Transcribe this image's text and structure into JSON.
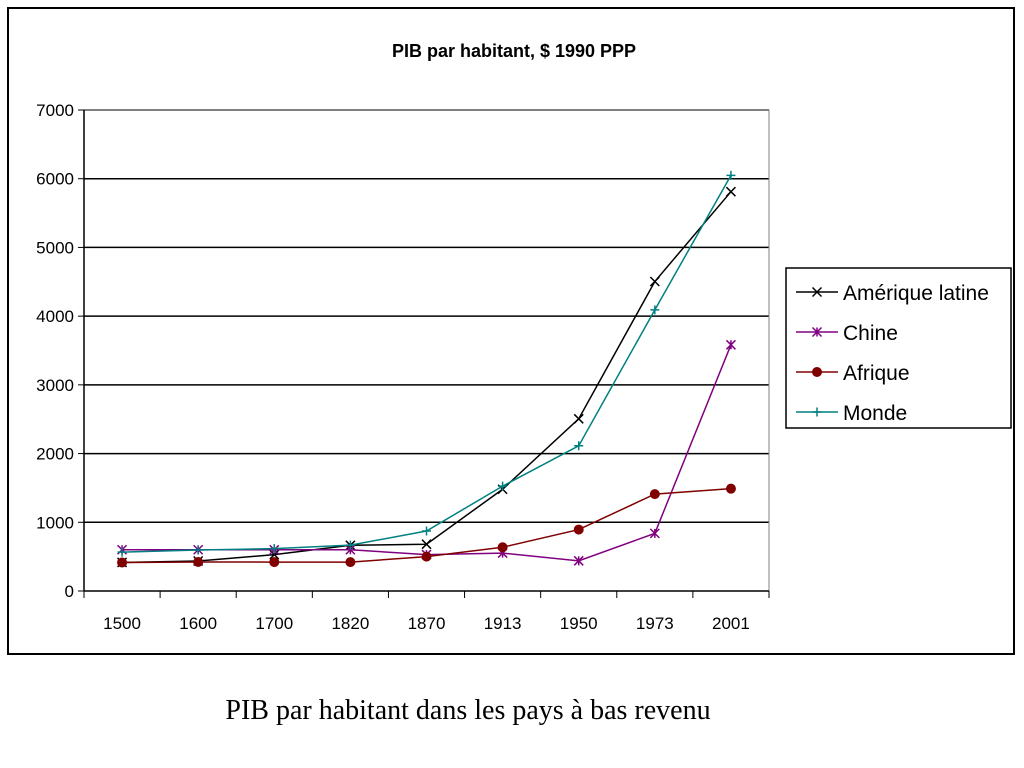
{
  "caption": "PIB par habitant dans les pays à bas revenu",
  "chart_data": {
    "type": "line",
    "title": "PIB par habitant, $ 1990 PPP",
    "xlabel": "",
    "ylabel": "",
    "categories": [
      "1500",
      "1600",
      "1700",
      "1820",
      "1870",
      "1913",
      "1950",
      "1973",
      "2001"
    ],
    "ylim": [
      0,
      7000
    ],
    "yticks": [
      0,
      1000,
      2000,
      3000,
      4000,
      5000,
      6000,
      7000
    ],
    "grid": "horizontal",
    "legend_position": "right",
    "series": [
      {
        "name": "Amérique latine",
        "color": "#000000",
        "marker": "x",
        "values": [
          416,
          437,
          529,
          665,
          681,
          1481,
          2506,
          4504,
          5811
        ]
      },
      {
        "name": "Chine",
        "color": "#800080",
        "marker": "star",
        "values": [
          600,
          600,
          600,
          600,
          530,
          552,
          439,
          839,
          3583
        ]
      },
      {
        "name": "Afrique",
        "color": "#800000",
        "marker": "circle",
        "values": [
          414,
          422,
          421,
          420,
          500,
          637,
          894,
          1410,
          1489
        ]
      },
      {
        "name": "Monde",
        "color": "#008080",
        "marker": "plus",
        "values": [
          566,
          596,
          616,
          667,
          873,
          1526,
          2113,
          4091,
          6049
        ]
      }
    ]
  }
}
